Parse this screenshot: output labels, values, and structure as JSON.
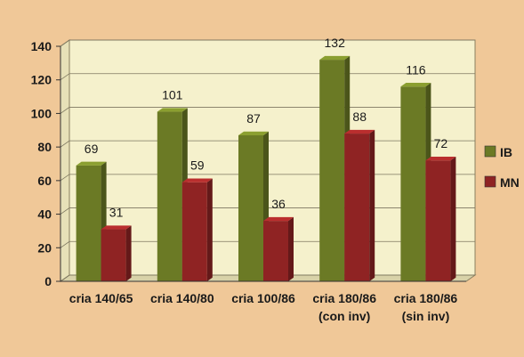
{
  "chart_data": {
    "type": "bar",
    "title": "",
    "xlabel": "",
    "ylabel": "",
    "categories": [
      [
        "cria 140/65"
      ],
      [
        "cria 140/80"
      ],
      [
        "cria 100/86"
      ],
      [
        "cria 180/86",
        "(con inv)"
      ],
      [
        "cria 180/86",
        "(sin inv)"
      ]
    ],
    "series": [
      {
        "name": "IB",
        "values": [
          69,
          101,
          87,
          132,
          116
        ],
        "color": "#6b7a25"
      },
      {
        "name": "MN",
        "values": [
          31,
          59,
          36,
          88,
          72
        ],
        "color": "#8f2323"
      }
    ],
    "ylim": [
      0,
      140
    ],
    "yticks": [
      0,
      20,
      40,
      60,
      80,
      100,
      120,
      140
    ],
    "grid": true,
    "legend": "right",
    "plot_background": "#f5f1cc",
    "page_background": "#f0c898"
  }
}
